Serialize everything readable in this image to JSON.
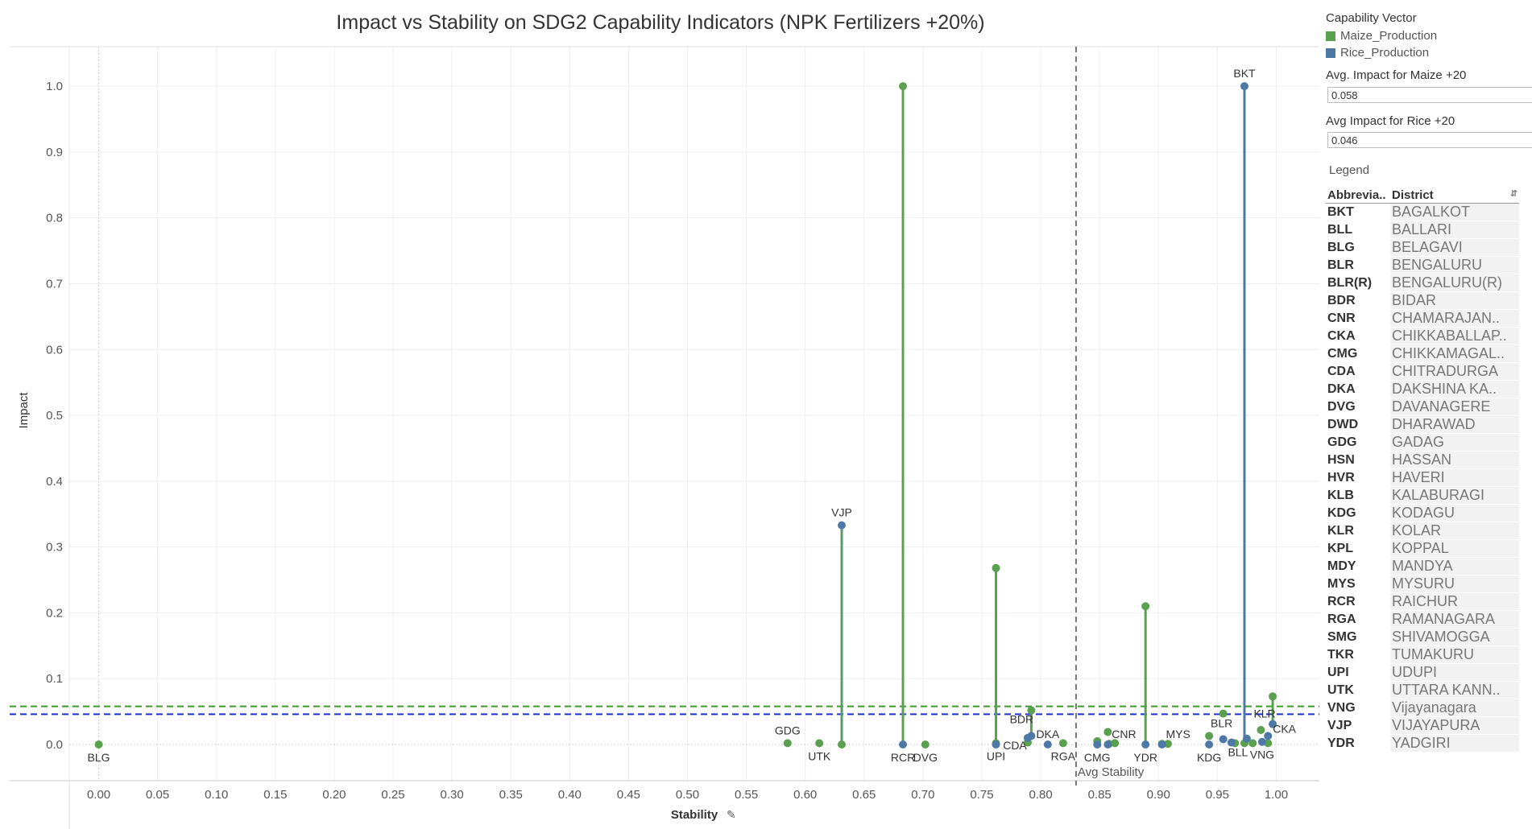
{
  "chart_data": {
    "type": "scatter",
    "title": "Impact vs Stability on SDG2 Capability Indicators (NPK Fertilizers +20%)",
    "xlabel": "Stability",
    "ylabel": "Impact",
    "xlim": [
      -0.025,
      1.025
    ],
    "ylim": [
      -0.055,
      1.06
    ],
    "x_ticks": [
      "0.00",
      "0.05",
      "0.10",
      "0.15",
      "0.20",
      "0.25",
      "0.30",
      "0.35",
      "0.40",
      "0.45",
      "0.50",
      "0.55",
      "0.60",
      "0.65",
      "0.70",
      "0.75",
      "0.80",
      "0.85",
      "0.90",
      "0.95",
      "1.00"
    ],
    "y_ticks": [
      "0.0",
      "0.1",
      "0.2",
      "0.3",
      "0.4",
      "0.5",
      "0.6",
      "0.7",
      "0.8",
      "0.9",
      "1.0"
    ],
    "grid": true,
    "avg_stability": 0.83,
    "avg_stability_label": "Avg Stability",
    "avg_impact_maize": 0.058,
    "avg_impact_rice": 0.046,
    "series": [
      {
        "name": "Maize_Production",
        "color": "#59a14f",
        "points": [
          {
            "x": 0.0,
            "y": 0.0,
            "label": "BLG"
          },
          {
            "x": 0.585,
            "y": 0.002,
            "label": "GDG"
          },
          {
            "x": 0.612,
            "y": 0.002,
            "label": "UTK"
          },
          {
            "x": 0.631,
            "y": 0.0,
            "label": ""
          },
          {
            "x": 0.683,
            "y": 1.0,
            "label": ""
          },
          {
            "x": 0.702,
            "y": 0.0,
            "label": "DVG"
          },
          {
            "x": 0.762,
            "y": 0.268,
            "label": ""
          },
          {
            "x": 0.762,
            "y": 0.002,
            "label": "UPI"
          },
          {
            "x": 0.789,
            "y": 0.003,
            "label": ""
          },
          {
            "x": 0.792,
            "y": 0.052,
            "label": ""
          },
          {
            "x": 0.819,
            "y": 0.002,
            "label": "RGA"
          },
          {
            "x": 0.848,
            "y": 0.005,
            "label": ""
          },
          {
            "x": 0.857,
            "y": 0.019,
            "label": ""
          },
          {
            "x": 0.858,
            "y": 0.001,
            "label": ""
          },
          {
            "x": 0.863,
            "y": 0.002,
            "label": ""
          },
          {
            "x": 0.889,
            "y": 0.21,
            "label": ""
          },
          {
            "x": 0.903,
            "y": 0.001,
            "label": ""
          },
          {
            "x": 0.908,
            "y": 0.001,
            "label": ""
          },
          {
            "x": 0.943,
            "y": 0.013,
            "label": ""
          },
          {
            "x": 0.955,
            "y": 0.047,
            "label": ""
          },
          {
            "x": 0.965,
            "y": 0.002,
            "label": ""
          },
          {
            "x": 0.973,
            "y": 0.002,
            "label": ""
          },
          {
            "x": 0.98,
            "y": 0.002,
            "label": ""
          },
          {
            "x": 0.987,
            "y": 0.022,
            "label": ""
          },
          {
            "x": 0.993,
            "y": 0.002,
            "label": ""
          },
          {
            "x": 0.997,
            "y": 0.073,
            "label": ""
          }
        ]
      },
      {
        "name": "Rice_Production",
        "color": "#4e79a7",
        "points": [
          {
            "x": 0.631,
            "y": 0.333,
            "label": "VJP"
          },
          {
            "x": 0.683,
            "y": 0.0,
            "label": "RCR"
          },
          {
            "x": 0.762,
            "y": 0.0,
            "label": ""
          },
          {
            "x": 0.789,
            "y": 0.01,
            "label": "CDA"
          },
          {
            "x": 0.792,
            "y": 0.013,
            "label": "BDR"
          },
          {
            "x": 0.806,
            "y": 0.0,
            "label": "DKA"
          },
          {
            "x": 0.848,
            "y": 0.0,
            "label": "CMG"
          },
          {
            "x": 0.857,
            "y": 0.0,
            "label": "CNR"
          },
          {
            "x": 0.889,
            "y": 0.0,
            "label": "YDR"
          },
          {
            "x": 0.903,
            "y": 0.0,
            "label": "MYS"
          },
          {
            "x": 0.943,
            "y": 0.0,
            "label": "KDG"
          },
          {
            "x": 0.955,
            "y": 0.008,
            "label": "BLR"
          },
          {
            "x": 0.962,
            "y": 0.003,
            "label": "BLL"
          },
          {
            "x": 0.973,
            "y": 1.0,
            "label": "BKT"
          },
          {
            "x": 0.975,
            "y": 0.009,
            "label": ""
          },
          {
            "x": 0.988,
            "y": 0.004,
            "label": "VNG"
          },
          {
            "x": 0.993,
            "y": 0.013,
            "label": "CKA"
          },
          {
            "x": 0.997,
            "y": 0.031,
            "label": "KLR"
          }
        ]
      }
    ],
    "stems": [
      {
        "x": 0.631,
        "y0": 0.0,
        "y1": 0.333,
        "color": "#5a9a6a"
      },
      {
        "x": 0.683,
        "y0": 0.0,
        "y1": 1.0,
        "color": "#59a14f"
      },
      {
        "x": 0.762,
        "y0": 0.0,
        "y1": 0.268,
        "color": "#59a14f"
      },
      {
        "x": 0.792,
        "y0": 0.013,
        "y1": 0.052,
        "color": "#59a14f"
      },
      {
        "x": 0.889,
        "y0": 0.0,
        "y1": 0.21,
        "color": "#59a14f"
      },
      {
        "x": 0.973,
        "y0": 0.0,
        "y1": 1.0,
        "color": "#4e79a7"
      },
      {
        "x": 0.997,
        "y0": 0.031,
        "y1": 0.073,
        "color": "#59a14f"
      }
    ]
  },
  "sidebar": {
    "capability_heading": "Capability Vector",
    "legend_items": [
      {
        "label": "Maize_Production",
        "color": "#59a14f"
      },
      {
        "label": "Rice_Production",
        "color": "#4e79a7"
      }
    ],
    "maize_param_label": "Avg. Impact for Maize +20",
    "maize_param_value": "0.058",
    "rice_param_label": "Avg Impact for Rice +20",
    "rice_param_value": "0.046",
    "legend_heading": "Legend",
    "table_headers": {
      "abbr": "Abbrevia..",
      "district": "District"
    },
    "districts": [
      {
        "abbr": "BKT",
        "name": "BAGALKOT"
      },
      {
        "abbr": "BLL",
        "name": "BALLARI"
      },
      {
        "abbr": "BLG",
        "name": "BELAGAVI"
      },
      {
        "abbr": "BLR",
        "name": "BENGALURU"
      },
      {
        "abbr": "BLR(R)",
        "name": "BENGALURU(R)"
      },
      {
        "abbr": "BDR",
        "name": "BIDAR"
      },
      {
        "abbr": "CNR",
        "name": "CHAMARAJAN.."
      },
      {
        "abbr": "CKA",
        "name": "CHIKKABALLAP.."
      },
      {
        "abbr": "CMG",
        "name": "CHIKKAMAGAL.."
      },
      {
        "abbr": "CDA",
        "name": "CHITRADURGA"
      },
      {
        "abbr": "DKA",
        "name": "DAKSHINA KA.."
      },
      {
        "abbr": "DVG",
        "name": "DAVANAGERE"
      },
      {
        "abbr": "DWD",
        "name": "DHARAWAD"
      },
      {
        "abbr": "GDG",
        "name": "GADAG"
      },
      {
        "abbr": "HSN",
        "name": "HASSAN"
      },
      {
        "abbr": "HVR",
        "name": "HAVERI"
      },
      {
        "abbr": "KLB",
        "name": "KALABURAGI"
      },
      {
        "abbr": "KDG",
        "name": "KODAGU"
      },
      {
        "abbr": "KLR",
        "name": "KOLAR"
      },
      {
        "abbr": "KPL",
        "name": "KOPPAL"
      },
      {
        "abbr": "MDY",
        "name": "MANDYA"
      },
      {
        "abbr": "MYS",
        "name": "MYSURU"
      },
      {
        "abbr": "RCR",
        "name": "RAICHUR"
      },
      {
        "abbr": "RGA",
        "name": "RAMANAGARA"
      },
      {
        "abbr": "SMG",
        "name": "SHIVAMOGGA"
      },
      {
        "abbr": "TKR",
        "name": "TUMAKURU"
      },
      {
        "abbr": "UPI",
        "name": "UDUPI"
      },
      {
        "abbr": "UTK",
        "name": "UTTARA KANN.."
      },
      {
        "abbr": "VNG",
        "name": "Vijayanagara"
      },
      {
        "abbr": "VJP",
        "name": "VIJAYAPURA"
      },
      {
        "abbr": "YDR",
        "name": "YADGIRI"
      }
    ]
  }
}
